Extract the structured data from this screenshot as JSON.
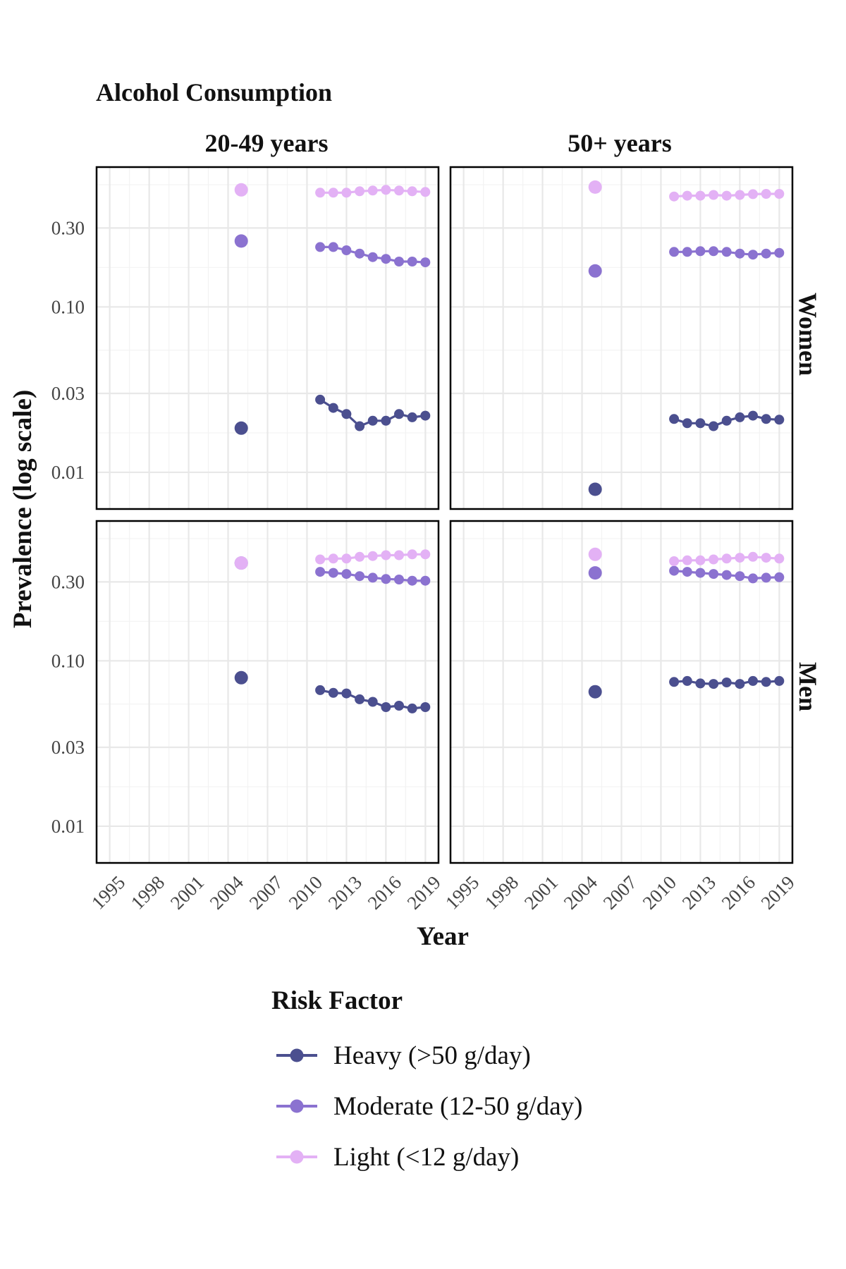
{
  "chart_data": {
    "type": "line",
    "title": "Alcohol Consumption",
    "xlabel": "Year",
    "ylabel": "Prevalence (log scale)",
    "y_scale": "log10",
    "ylim": [
      0.006,
      0.7
    ],
    "xlim": [
      1994,
      2020
    ],
    "x_ticks": [
      1995,
      1998,
      2001,
      2004,
      2007,
      2010,
      2013,
      2016,
      2019
    ],
    "x_tick_labels": [
      "1995",
      "1998",
      "2001",
      "2004",
      "2007",
      "2010",
      "2013",
      "2016",
      "2019"
    ],
    "y_ticks": [
      0.01,
      0.03,
      0.1,
      0.3
    ],
    "y_tick_labels": [
      "0.01",
      "0.03",
      "0.10",
      "0.30"
    ],
    "grid": true,
    "legend_position": "bottom",
    "legend_title": "Risk Factor",
    "facet_columns": [
      "20-49 years",
      "50+ years"
    ],
    "facet_rows": [
      "Women",
      "Men"
    ],
    "series_meta": [
      {
        "key": "heavy",
        "name": "Heavy (>50 g/day)",
        "color": "#4b4f8f"
      },
      {
        "key": "moderate",
        "name": "Moderate (12-50 g/day)",
        "color": "#8b72d0"
      },
      {
        "key": "light",
        "name": "Light (<12 g/day)",
        "color": "#e3b1f5"
      }
    ],
    "panels": [
      {
        "row": "Women",
        "col": "20-49 years",
        "series": [
          {
            "key": "heavy",
            "isolated": [
              [
                2005,
                0.0185
              ]
            ],
            "line": [
              [
                2011,
                0.0275
              ],
              [
                2012,
                0.0245
              ],
              [
                2013,
                0.0225
              ],
              [
                2014,
                0.019
              ],
              [
                2015,
                0.0205
              ],
              [
                2016,
                0.0205
              ],
              [
                2017,
                0.0225
              ],
              [
                2018,
                0.0215
              ],
              [
                2019,
                0.022
              ]
            ]
          },
          {
            "key": "moderate",
            "isolated": [
              [
                2005,
                0.25
              ]
            ],
            "line": [
              [
                2011,
                0.23
              ],
              [
                2012,
                0.23
              ],
              [
                2013,
                0.22
              ],
              [
                2014,
                0.21
              ],
              [
                2015,
                0.2
              ],
              [
                2016,
                0.195
              ],
              [
                2017,
                0.188
              ],
              [
                2018,
                0.188
              ],
              [
                2019,
                0.186
              ]
            ]
          },
          {
            "key": "light",
            "isolated": [
              [
                2005,
                0.51
              ]
            ],
            "line": [
              [
                2011,
                0.49
              ],
              [
                2012,
                0.49
              ],
              [
                2013,
                0.49
              ],
              [
                2014,
                0.5
              ],
              [
                2015,
                0.505
              ],
              [
                2016,
                0.51
              ],
              [
                2017,
                0.505
              ],
              [
                2018,
                0.5
              ],
              [
                2019,
                0.495
              ]
            ]
          }
        ]
      },
      {
        "row": "Women",
        "col": "50+ years",
        "series": [
          {
            "key": "heavy",
            "isolated": [
              [
                2005,
                0.0079
              ]
            ],
            "line": [
              [
                2011,
                0.021
              ],
              [
                2012,
                0.0198
              ],
              [
                2013,
                0.0198
              ],
              [
                2014,
                0.019
              ],
              [
                2015,
                0.0205
              ],
              [
                2016,
                0.0215
              ],
              [
                2017,
                0.022
              ],
              [
                2018,
                0.021
              ],
              [
                2019,
                0.0208
              ]
            ]
          },
          {
            "key": "moderate",
            "isolated": [
              [
                2005,
                0.165
              ]
            ],
            "line": [
              [
                2011,
                0.215
              ],
              [
                2012,
                0.215
              ],
              [
                2013,
                0.217
              ],
              [
                2014,
                0.217
              ],
              [
                2015,
                0.215
              ],
              [
                2016,
                0.21
              ],
              [
                2017,
                0.207
              ],
              [
                2018,
                0.21
              ],
              [
                2019,
                0.212
              ]
            ]
          },
          {
            "key": "light",
            "isolated": [
              [
                2005,
                0.53
              ]
            ],
            "line": [
              [
                2011,
                0.465
              ],
              [
                2012,
                0.47
              ],
              [
                2013,
                0.47
              ],
              [
                2014,
                0.475
              ],
              [
                2015,
                0.47
              ],
              [
                2016,
                0.475
              ],
              [
                2017,
                0.48
              ],
              [
                2018,
                0.482
              ],
              [
                2019,
                0.482
              ]
            ]
          }
        ]
      },
      {
        "row": "Men",
        "col": "20-49 years",
        "series": [
          {
            "key": "heavy",
            "isolated": [
              [
                2005,
                0.079
              ]
            ],
            "line": [
              [
                2011,
                0.0665
              ],
              [
                2012,
                0.064
              ],
              [
                2013,
                0.0635
              ],
              [
                2014,
                0.0585
              ],
              [
                2015,
                0.0565
              ],
              [
                2016,
                0.0525
              ],
              [
                2017,
                0.0535
              ],
              [
                2018,
                0.0515
              ],
              [
                2019,
                0.0525
              ]
            ]
          },
          {
            "key": "moderate",
            "isolated": [
              [
                2005,
                0.39
              ]
            ],
            "line": [
              [
                2011,
                0.345
              ],
              [
                2012,
                0.34
              ],
              [
                2013,
                0.335
              ],
              [
                2014,
                0.325
              ],
              [
                2015,
                0.318
              ],
              [
                2016,
                0.312
              ],
              [
                2017,
                0.31
              ],
              [
                2018,
                0.305
              ],
              [
                2019,
                0.305
              ]
            ]
          },
          {
            "key": "light",
            "isolated": [
              [
                2005,
                0.39
              ]
            ],
            "line": [
              [
                2011,
                0.41
              ],
              [
                2012,
                0.415
              ],
              [
                2013,
                0.415
              ],
              [
                2014,
                0.425
              ],
              [
                2015,
                0.43
              ],
              [
                2016,
                0.435
              ],
              [
                2017,
                0.435
              ],
              [
                2018,
                0.44
              ],
              [
                2019,
                0.44
              ]
            ]
          }
        ]
      },
      {
        "row": "Men",
        "col": "50+ years",
        "series": [
          {
            "key": "heavy",
            "isolated": [
              [
                2005,
                0.065
              ]
            ],
            "line": [
              [
                2011,
                0.0745
              ],
              [
                2012,
                0.0755
              ],
              [
                2013,
                0.073
              ],
              [
                2014,
                0.0725
              ],
              [
                2015,
                0.074
              ],
              [
                2016,
                0.0725
              ],
              [
                2017,
                0.0755
              ],
              [
                2018,
                0.0745
              ],
              [
                2019,
                0.0755
              ]
            ]
          },
          {
            "key": "moderate",
            "isolated": [
              [
                2005,
                0.34
              ]
            ],
            "line": [
              [
                2011,
                0.35
              ],
              [
                2012,
                0.345
              ],
              [
                2013,
                0.34
              ],
              [
                2014,
                0.335
              ],
              [
                2015,
                0.33
              ],
              [
                2016,
                0.325
              ],
              [
                2017,
                0.315
              ],
              [
                2018,
                0.318
              ],
              [
                2019,
                0.32
              ]
            ]
          },
          {
            "key": "light",
            "isolated": [
              [
                2005,
                0.44
              ]
            ],
            "line": [
              [
                2011,
                0.4
              ],
              [
                2012,
                0.405
              ],
              [
                2013,
                0.405
              ],
              [
                2014,
                0.41
              ],
              [
                2015,
                0.415
              ],
              [
                2016,
                0.42
              ],
              [
                2017,
                0.425
              ],
              [
                2018,
                0.42
              ],
              [
                2019,
                0.415
              ]
            ]
          }
        ]
      }
    ]
  }
}
